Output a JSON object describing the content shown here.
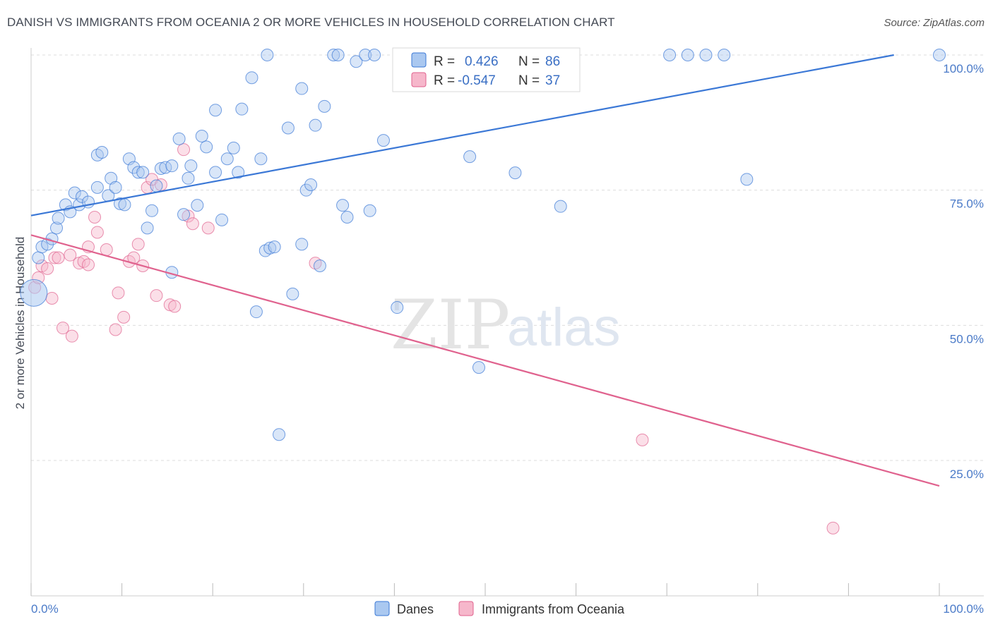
{
  "title": "DANISH VS IMMIGRANTS FROM OCEANIA 2 OR MORE VEHICLES IN HOUSEHOLD CORRELATION CHART",
  "source": "Source: ZipAtlas.com",
  "watermark": {
    "zip": "ZIP",
    "atlas": "atlas"
  },
  "colors": {
    "blue": "#3b78d6",
    "blue_fill": "#aac8f0",
    "pink": "#e0628e",
    "pink_fill": "#f6b7cb",
    "tick_label": "#4a7ac8",
    "grid": "#dddddd"
  },
  "chart_data": {
    "type": "scatter",
    "title": "DANISH VS IMMIGRANTS FROM OCEANIA 2 OR MORE VEHICLES IN HOUSEHOLD CORRELATION CHART",
    "xlabel": "",
    "ylabel": "2 or more Vehicles in Household",
    "xlim": [
      0,
      100
    ],
    "ylim": [
      3,
      104
    ],
    "x_tick_labels": {
      "left": "0.0%",
      "right": "100.0%"
    },
    "y_ticks": [
      {
        "value": 25,
        "label": "25.0%"
      },
      {
        "value": 50,
        "label": "50.0%"
      },
      {
        "value": 75,
        "label": "75.0%"
      },
      {
        "value": 100,
        "label": "100.0%"
      }
    ],
    "grid": "horizontal dashed",
    "legend_position": "top-center",
    "series": [
      {
        "name": "Danes",
        "color": "#3b78d6",
        "fill": "#aac8f0",
        "R_label": "R =",
        "R": "0.426",
        "N_label": "N =",
        "N": "86",
        "trend": {
          "x": [
            0,
            95
          ],
          "y": [
            70.3,
            100
          ]
        },
        "points": [
          [
            0.3,
            56
          ],
          [
            0.8,
            62.5
          ],
          [
            1.2,
            64.5
          ],
          [
            1.8,
            65
          ],
          [
            2.3,
            66
          ],
          [
            2.8,
            68
          ],
          [
            3.0,
            69.8
          ],
          [
            3.8,
            72.3
          ],
          [
            4.3,
            71
          ],
          [
            4.8,
            74.5
          ],
          [
            5.3,
            72.3
          ],
          [
            5.6,
            73.8
          ],
          [
            6.3,
            72.8
          ],
          [
            7.3,
            75.5
          ],
          [
            7.3,
            81.5
          ],
          [
            7.8,
            82
          ],
          [
            8.5,
            74
          ],
          [
            8.8,
            77.2
          ],
          [
            9.3,
            75.5
          ],
          [
            9.8,
            72.5
          ],
          [
            10.3,
            72.3
          ],
          [
            10.8,
            80.8
          ],
          [
            11.3,
            79.2
          ],
          [
            11.8,
            78.3
          ],
          [
            12.3,
            78.3
          ],
          [
            12.8,
            68
          ],
          [
            13.3,
            71.2
          ],
          [
            13.8,
            75.8
          ],
          [
            14.3,
            79
          ],
          [
            14.8,
            79.2
          ],
          [
            15.5,
            79.5
          ],
          [
            15.5,
            59.8
          ],
          [
            16.3,
            84.5
          ],
          [
            16.8,
            70.5
          ],
          [
            17.3,
            77.2
          ],
          [
            17.6,
            79.5
          ],
          [
            18.3,
            72.2
          ],
          [
            18.8,
            85
          ],
          [
            19.3,
            83
          ],
          [
            20.3,
            78.3
          ],
          [
            20.3,
            89.8
          ],
          [
            21.0,
            69.5
          ],
          [
            21.6,
            80.8
          ],
          [
            22.3,
            82.8
          ],
          [
            22.8,
            78.3
          ],
          [
            23.2,
            90
          ],
          [
            24.3,
            95.8
          ],
          [
            24.8,
            52.5
          ],
          [
            25.3,
            80.8
          ],
          [
            25.8,
            63.8
          ],
          [
            26.0,
            100
          ],
          [
            26.3,
            64.3
          ],
          [
            26.8,
            64.5
          ],
          [
            27.3,
            29.8
          ],
          [
            28.3,
            86.5
          ],
          [
            28.8,
            55.8
          ],
          [
            29.8,
            65
          ],
          [
            29.8,
            93.8
          ],
          [
            30.3,
            75
          ],
          [
            30.8,
            76
          ],
          [
            31.3,
            87
          ],
          [
            31.8,
            61
          ],
          [
            32.3,
            90.5
          ],
          [
            33.3,
            100
          ],
          [
            33.8,
            100
          ],
          [
            34.3,
            72.2
          ],
          [
            34.8,
            70
          ],
          [
            35.8,
            98.8
          ],
          [
            36.8,
            100
          ],
          [
            37.3,
            71.2
          ],
          [
            37.8,
            100
          ],
          [
            38.8,
            84.2
          ],
          [
            40.3,
            53.3
          ],
          [
            43.3,
            100
          ],
          [
            47.8,
            100
          ],
          [
            48.3,
            81.2
          ],
          [
            49.3,
            42.2
          ],
          [
            51.3,
            100
          ],
          [
            53.3,
            78.2
          ],
          [
            58.3,
            72
          ],
          [
            70.3,
            100
          ],
          [
            72.3,
            100
          ],
          [
            74.3,
            100
          ],
          [
            76.3,
            100
          ],
          [
            78.8,
            77
          ],
          [
            100,
            100
          ]
        ]
      },
      {
        "name": "Immigrants from Oceania",
        "color": "#e0628e",
        "fill": "#f6b7cb",
        "R_label": "R =",
        "R": "-0.547",
        "N_label": "N =",
        "N": "37",
        "trend": {
          "x": [
            0,
            100
          ],
          "y": [
            66.7,
            20.3
          ]
        },
        "points": [
          [
            0.4,
            57
          ],
          [
            0.8,
            58.8
          ],
          [
            1.2,
            61
          ],
          [
            1.8,
            60.5
          ],
          [
            2.3,
            55
          ],
          [
            2.6,
            62.5
          ],
          [
            3.0,
            62.5
          ],
          [
            3.5,
            49.5
          ],
          [
            4.3,
            63
          ],
          [
            4.5,
            48
          ],
          [
            5.3,
            61.5
          ],
          [
            5.8,
            61.8
          ],
          [
            6.3,
            64.5
          ],
          [
            6.3,
            61.2
          ],
          [
            7.0,
            70
          ],
          [
            7.3,
            67.2
          ],
          [
            8.3,
            64
          ],
          [
            9.3,
            49.2
          ],
          [
            9.6,
            56
          ],
          [
            10.2,
            51.5
          ],
          [
            10.8,
            61.8
          ],
          [
            11.3,
            62.5
          ],
          [
            11.8,
            65
          ],
          [
            12.3,
            61
          ],
          [
            12.8,
            75.5
          ],
          [
            13.3,
            77
          ],
          [
            13.8,
            55.5
          ],
          [
            14.3,
            76
          ],
          [
            15.3,
            53.8
          ],
          [
            15.8,
            53.5
          ],
          [
            16.8,
            82.5
          ],
          [
            17.3,
            70.2
          ],
          [
            17.8,
            68.8
          ],
          [
            19.5,
            68
          ],
          [
            31.3,
            61.5
          ],
          [
            67.3,
            28.8
          ],
          [
            88.3,
            12.5
          ]
        ]
      }
    ]
  }
}
